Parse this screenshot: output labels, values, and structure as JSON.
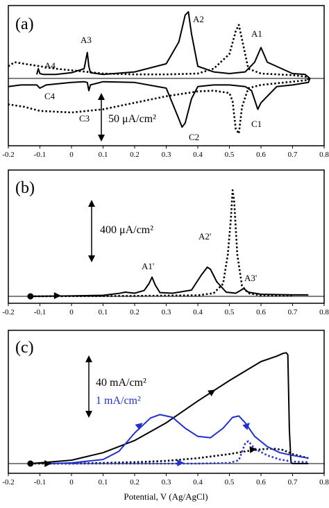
{
  "chart_data": [
    {
      "type": "line",
      "panel_label": "(a)",
      "xlim": [
        -0.2,
        0.8
      ],
      "x_ticks": [
        -0.2,
        -0.1,
        0,
        0.1,
        0.2,
        0.3,
        0.4,
        0.5,
        0.6,
        0.7,
        0.8
      ],
      "tick_labels": [
        "-0.2",
        "-0.1",
        "0",
        "0.1",
        "0.2",
        "0.3",
        "0.4",
        "0.5",
        "0.6",
        "0.7",
        "0.8"
      ],
      "scale_bar": "50 μA/cm²",
      "annotations": [
        "A1",
        "A2",
        "A3",
        "A4",
        "C1",
        "C2",
        "C3",
        "C4"
      ],
      "series": [
        {
          "style": "solid",
          "x": [
            -0.11,
            -0.105,
            -0.1,
            -0.09,
            -0.05,
            0.0,
            0.04,
            0.05,
            0.055,
            0.06,
            0.1,
            0.2,
            0.3,
            0.34,
            0.36,
            0.37,
            0.38,
            0.4,
            0.45,
            0.5,
            0.55,
            0.58,
            0.6,
            0.62,
            0.7,
            0.74,
            0.755,
            0.75,
            0.7,
            0.65,
            0.6,
            0.59,
            0.57,
            0.55,
            0.5,
            0.45,
            0.4,
            0.38,
            0.36,
            0.35,
            0.34,
            0.3,
            0.2,
            0.1,
            0.06,
            0.055,
            0.05,
            0.04,
            0.0,
            -0.08,
            -0.1,
            -0.11,
            -0.12,
            -0.16,
            -0.2
          ],
          "y": [
            5,
            12,
            6,
            5,
            5,
            7,
            12,
            32,
            15,
            7,
            5,
            8,
            18,
            45,
            78,
            82,
            55,
            15,
            8,
            6,
            8,
            20,
            38,
            20,
            6,
            5,
            0,
            -5,
            -8,
            -10,
            -30,
            -38,
            -15,
            -10,
            -8,
            -8,
            -10,
            -25,
            -55,
            -60,
            -50,
            -12,
            -5,
            -4,
            -8,
            -15,
            -5,
            -4,
            -5,
            -8,
            -12,
            -8,
            -8,
            -8,
            -10
          ]
        },
        {
          "style": "dotted",
          "x": [
            -0.2,
            -0.18,
            -0.15,
            -0.1,
            -0.05,
            0.0,
            0.05,
            0.1,
            0.2,
            0.3,
            0.4,
            0.45,
            0.5,
            0.52,
            0.53,
            0.54,
            0.56,
            0.6,
            0.7,
            0.745,
            0.75,
            0.7,
            0.6,
            0.56,
            0.54,
            0.53,
            0.52,
            0.51,
            0.5,
            0.45,
            0.4,
            0.3,
            0.2,
            0.1,
            0.0,
            -0.1,
            -0.15,
            -0.2
          ],
          "y": [
            15,
            20,
            18,
            15,
            12,
            10,
            8,
            6,
            5,
            5,
            6,
            12,
            30,
            58,
            66,
            48,
            12,
            6,
            4,
            2,
            -2,
            -4,
            -8,
            -12,
            -35,
            -68,
            -62,
            -28,
            -18,
            -15,
            -16,
            -22,
            -30,
            -38,
            -42,
            -40,
            -35,
            -32
          ]
        }
      ]
    },
    {
      "type": "line",
      "panel_label": "(b)",
      "xlim": [
        -0.2,
        0.8
      ],
      "x_ticks": [
        -0.2,
        -0.1,
        0,
        0.1,
        0.2,
        0.3,
        0.4,
        0.5,
        0.6,
        0.7,
        0.8
      ],
      "tick_labels": [
        "-0.2",
        "-0.1",
        "0",
        "0.1",
        "0.2",
        "0.3",
        "0.4",
        "0.5",
        "0.6",
        "0.7",
        "0.8"
      ],
      "scale_bar": "400 μA/cm²",
      "annotations": [
        "A1'",
        "A2'",
        "A3'"
      ],
      "series": [
        {
          "style": "solid",
          "x": [
            -0.13,
            0.0,
            0.1,
            0.15,
            0.17,
            0.2,
            0.23,
            0.245,
            0.255,
            0.265,
            0.28,
            0.32,
            0.38,
            0.41,
            0.43,
            0.44,
            0.46,
            0.49,
            0.52,
            0.535,
            0.545,
            0.56,
            0.6,
            0.7,
            0.75
          ],
          "y": [
            0,
            2,
            5,
            14,
            20,
            15,
            28,
            60,
            92,
            55,
            18,
            15,
            30,
            100,
            140,
            130,
            70,
            20,
            15,
            28,
            38,
            20,
            10,
            7,
            7
          ]
        },
        {
          "style": "dotted",
          "x": [
            -0.13,
            0.0,
            0.2,
            0.4,
            0.45,
            0.48,
            0.495,
            0.505,
            0.51,
            0.515,
            0.525,
            0.54,
            0.56,
            0.6,
            0.7
          ],
          "y": [
            0,
            1,
            2,
            5,
            15,
            60,
            200,
            380,
            510,
            460,
            200,
            50,
            15,
            5,
            3
          ]
        }
      ]
    },
    {
      "type": "line",
      "panel_label": "(c)",
      "xlim": [
        -0.2,
        0.8
      ],
      "x_ticks": [
        -0.2,
        -0.1,
        0,
        0.1,
        0.2,
        0.3,
        0.4,
        0.5,
        0.6,
        0.7,
        0.8
      ],
      "tick_labels": [
        "-0.2",
        "-0.1",
        "0",
        "0.1",
        "0.2",
        "0.3",
        "0.4",
        "0.5",
        "0.6",
        "0.7",
        "0.8"
      ],
      "scale_bar_black": "40 mA/cm²",
      "scale_bar_blue": "1 mA/cm²",
      "xlabel": "Potential, V (Ag/AgCl)",
      "series": [
        {
          "style": "solid",
          "color": "#000000",
          "x": [
            -0.13,
            0.0,
            0.1,
            0.2,
            0.3,
            0.4,
            0.5,
            0.6,
            0.65,
            0.67,
            0.68,
            0.685,
            0.69,
            0.695,
            0.7,
            0.75
          ],
          "y": [
            0,
            5,
            16,
            34,
            60,
            92,
            122,
            150,
            158,
            162,
            163,
            160,
            50,
            2,
            0,
            0
          ]
        },
        {
          "style": "dotted",
          "color": "#000000",
          "x": [
            -0.13,
            0.0,
            0.1,
            0.2,
            0.3,
            0.4,
            0.5,
            0.55,
            0.6,
            0.64,
            0.67,
            0.7,
            0.75
          ],
          "y": [
            0,
            0,
            1,
            2,
            4,
            8,
            14,
            18,
            21,
            22,
            20,
            14,
            8
          ]
        },
        {
          "style": "solid",
          "color": "#1f2fd1",
          "x": [
            -0.07,
            0.0,
            0.1,
            0.15,
            0.2,
            0.25,
            0.28,
            0.32,
            0.36,
            0.4,
            0.44,
            0.48,
            0.51,
            0.53,
            0.55,
            0.58,
            0.62,
            0.66,
            0.7,
            0.75
          ],
          "y": [
            0,
            1,
            6,
            18,
            45,
            67,
            72,
            68,
            52,
            40,
            38,
            52,
            68,
            70,
            60,
            40,
            25,
            16,
            12,
            8
          ]
        },
        {
          "style": "dotted",
          "color": "#1f2fd1",
          "x": [
            -0.07,
            0.0,
            0.1,
            0.2,
            0.3,
            0.4,
            0.5,
            0.53,
            0.55,
            0.56,
            0.58,
            0.62,
            0.66,
            0.7,
            0.75
          ],
          "y": [
            0,
            0,
            0,
            0,
            0,
            0,
            1,
            5,
            30,
            33,
            22,
            12,
            6,
            3,
            2
          ]
        }
      ]
    }
  ]
}
